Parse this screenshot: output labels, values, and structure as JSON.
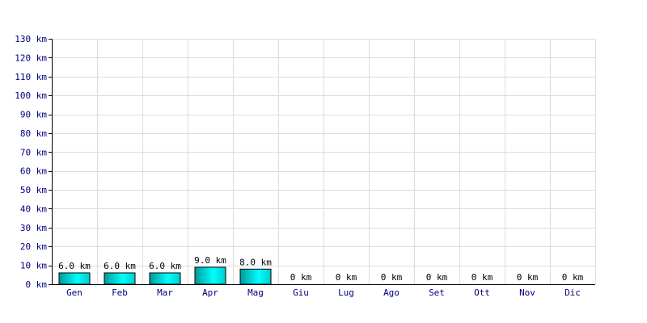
{
  "chart_data": {
    "type": "bar",
    "categories": [
      "Gen",
      "Feb",
      "Mar",
      "Apr",
      "Mag",
      "Giu",
      "Lug",
      "Ago",
      "Set",
      "Ott",
      "Nov",
      "Dic"
    ],
    "values": [
      6.0,
      6.0,
      6.0,
      9.0,
      8.0,
      0,
      0,
      0,
      0,
      0,
      0,
      0
    ],
    "data_labels": [
      "6.0 km",
      "6.0 km",
      "6.0 km",
      "9.0 km",
      "8.0 km",
      "0 km",
      "0 km",
      "0 km",
      "0 km",
      "0 km",
      "0 km",
      "0 km"
    ],
    "y_ticks": [
      0,
      10,
      20,
      30,
      40,
      50,
      60,
      70,
      80,
      90,
      100,
      110,
      120,
      130
    ],
    "y_tick_labels": [
      "0 km",
      "10 km",
      "20 km",
      "30 km",
      "40 km",
      "50 km",
      "60 km",
      "70 km",
      "80 km",
      "90 km",
      "100 km",
      "110 km",
      "120 km",
      "130 km"
    ],
    "ylim": [
      0,
      130
    ],
    "title": "",
    "xlabel": "",
    "ylabel": "",
    "grid": true,
    "legend": "none",
    "colors": {
      "bar_light": "#00ffff",
      "bar_dark": "#009999",
      "bar_border": "#000000",
      "grid": "#dcdcdc",
      "axis": "#000000",
      "tick_text": "#000080"
    }
  }
}
